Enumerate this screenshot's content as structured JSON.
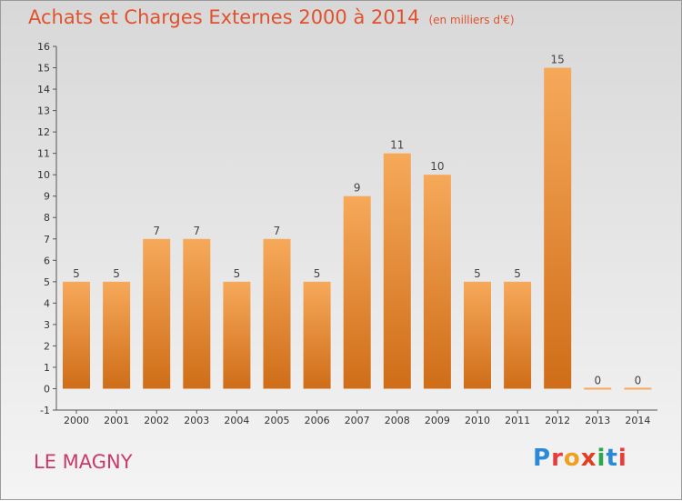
{
  "title": "Achats et Charges Externes 2000 à 2014",
  "unit": "(en milliers d'€)",
  "commune": "LE MAGNY",
  "brand": {
    "letters": [
      "P",
      "r",
      "o",
      "x",
      "i",
      "t",
      "i"
    ],
    "colors": [
      "#2a8ad8",
      "#e83c3c",
      "#f0a020",
      "#e04020",
      "#2aa84a",
      "#2a8ad8",
      "#e83c3c"
    ]
  },
  "colors": {
    "bar_top": "#f6a95a",
    "bar_bottom": "#cf6d18",
    "title": "#e0522e",
    "commune": "#c83a6a"
  },
  "chart_data": {
    "type": "bar",
    "categories": [
      "2000",
      "2001",
      "2002",
      "2003",
      "2004",
      "2005",
      "2006",
      "2007",
      "2008",
      "2009",
      "2010",
      "2011",
      "2012",
      "2013",
      "2014"
    ],
    "values": [
      5,
      5,
      7,
      7,
      5,
      7,
      5,
      9,
      11,
      10,
      5,
      5,
      15,
      0,
      0
    ],
    "ylim": [
      -1,
      16
    ],
    "yticks": [
      -1,
      0,
      1,
      2,
      3,
      4,
      5,
      6,
      7,
      8,
      9,
      10,
      11,
      12,
      13,
      14,
      15,
      16
    ],
    "grid": false,
    "legend": "none"
  }
}
